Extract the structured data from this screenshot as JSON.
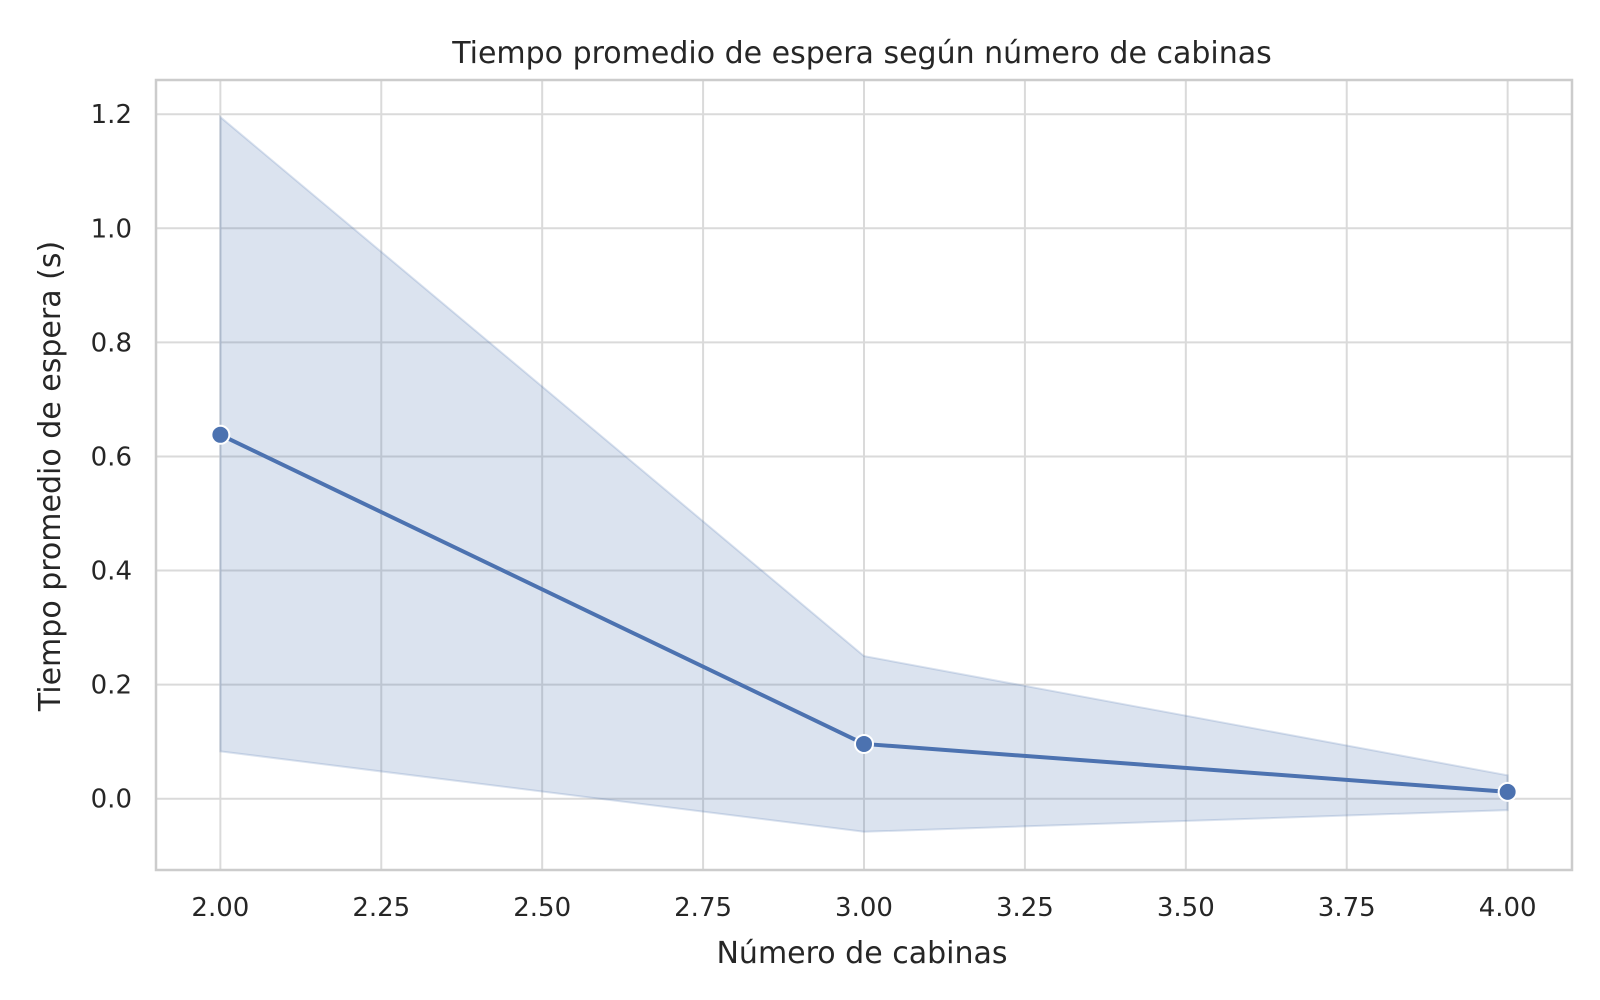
{
  "chart_data": {
    "type": "line",
    "title": "Tiempo promedio de espera según número de cabinas",
    "xlabel": "Número de cabinas",
    "ylabel": "Tiempo promedio de espera (s)",
    "xlim": [
      1.9,
      4.1
    ],
    "ylim": [
      -0.125,
      1.26
    ],
    "xticks": [
      2.0,
      2.25,
      2.5,
      2.75,
      3.0,
      3.25,
      3.5,
      3.75,
      4.0
    ],
    "xtick_labels": [
      "2.00",
      "2.25",
      "2.50",
      "2.75",
      "3.00",
      "3.25",
      "3.50",
      "3.75",
      "4.00"
    ],
    "yticks": [
      0.0,
      0.2,
      0.4,
      0.6,
      0.8,
      1.0,
      1.2
    ],
    "ytick_labels": [
      "0.0",
      "0.2",
      "0.4",
      "0.6",
      "0.8",
      "1.0",
      "1.2"
    ],
    "grid": true,
    "series": [
      {
        "name": "Tiempo promedio de espera",
        "x": [
          2.0,
          3.0,
          4.0
        ],
        "y": [
          0.638,
          0.096,
          0.012
        ],
        "ci_lower": [
          0.083,
          -0.058,
          -0.02
        ],
        "ci_upper": [
          1.195,
          0.25,
          0.041
        ]
      }
    ],
    "colors": {
      "line": "#4c72b0",
      "band": "#4c72b0",
      "grid": "#dadada",
      "frame": "#cccccc",
      "text": "#262626"
    }
  }
}
